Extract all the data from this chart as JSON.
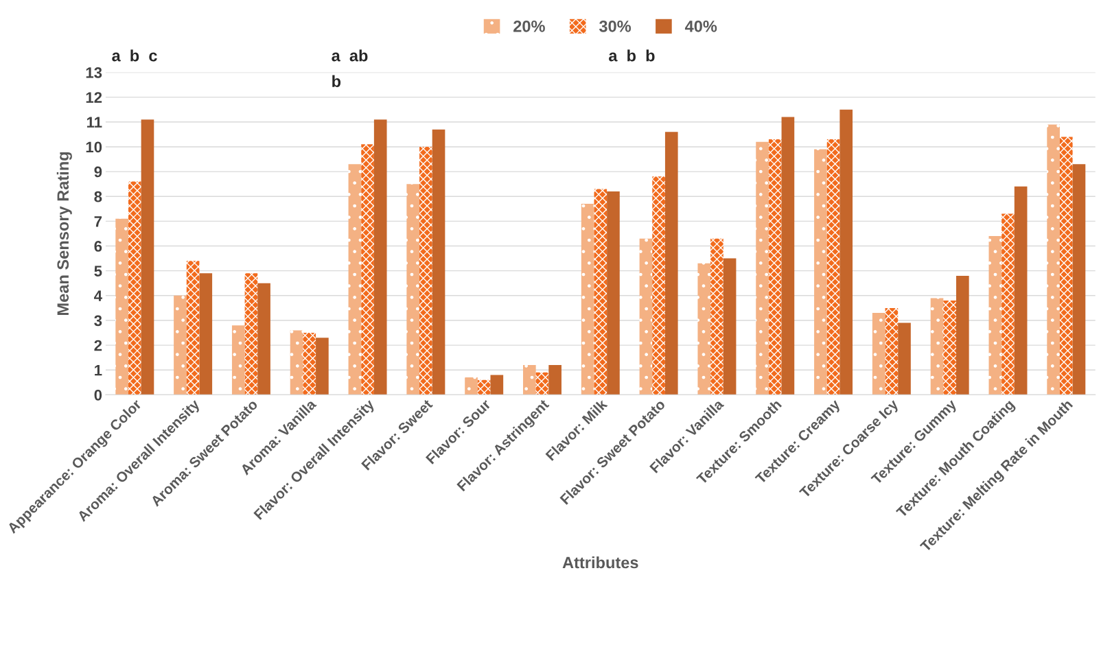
{
  "chart_data": {
    "type": "bar",
    "xlabel": "Attributes",
    "ylabel": "Mean Sensory Rating",
    "categories": [
      "Appearance: Orange Color",
      "Aroma: Overall Intensity",
      "Aroma: Sweet Potato",
      "Aroma: Vanilla",
      "Flavor: Overall Intensity",
      "Flavor: Sweet",
      "Flavor: Sour",
      "Flavor: Astringent",
      "Flavor: Milk",
      "Flavor: Sweet Potato",
      "Flavor: Vanilla",
      "Texture: Smooth",
      "Texture: Creamy",
      "Texture: Coarse Icy",
      "Texture: Gummy",
      "Texture: Mouth Coating",
      "Texture: Melting Rate in Mouth"
    ],
    "series": [
      {
        "name": "20%",
        "color": "#f4b183",
        "values": [
          7.1,
          4.0,
          2.8,
          2.6,
          9.3,
          8.5,
          0.7,
          1.2,
          7.7,
          6.3,
          5.3,
          10.2,
          9.9,
          3.3,
          3.9,
          6.4,
          10.9
        ]
      },
      {
        "name": "30%",
        "color": "#f26b1d",
        "values": [
          8.6,
          5.4,
          4.9,
          2.5,
          10.1,
          10.0,
          0.6,
          0.9,
          8.3,
          8.8,
          6.3,
          10.3,
          10.3,
          3.5,
          3.8,
          7.3,
          10.4
        ]
      },
      {
        "name": "40%",
        "color": "#c5662b",
        "values": [
          11.1,
          4.9,
          4.5,
          2.3,
          11.1,
          10.7,
          0.8,
          1.2,
          8.2,
          10.6,
          5.5,
          11.2,
          11.5,
          2.9,
          4.8,
          8.4,
          9.3
        ]
      }
    ],
    "ylim": [
      0,
      13
    ],
    "yticks": [
      0,
      1,
      2,
      3,
      4,
      5,
      6,
      7,
      8,
      9,
      10,
      11,
      12,
      13
    ],
    "grid": "y",
    "legend": "top",
    "annotations": [
      "a  b  c",
      "a  ab\nb",
      "a  b  b"
    ]
  }
}
